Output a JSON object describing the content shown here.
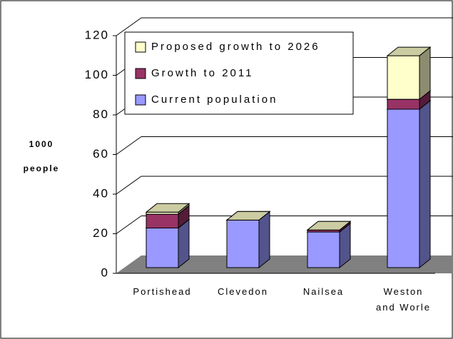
{
  "chart_data": {
    "type": "bar3d_stacked",
    "y_label_lines": [
      "1000",
      "people"
    ],
    "categories": [
      "Portishead",
      "Clevedon",
      "Nailsea",
      "Weston and Worle"
    ],
    "series": [
      {
        "name": "Current population",
        "color": "#9999ff",
        "values": [
          20,
          24,
          18,
          80
        ]
      },
      {
        "name": "Growth to 2011",
        "color": "#993366",
        "values": [
          7,
          0,
          1,
          5
        ]
      },
      {
        "name": "Proposed growth to 2026",
        "color": "#ffffcc",
        "values": [
          1,
          0,
          0,
          22
        ]
      }
    ],
    "ylim": [
      0,
      120
    ],
    "yticks": [
      0,
      20,
      40,
      60,
      80,
      100,
      120
    ],
    "grid": true
  }
}
